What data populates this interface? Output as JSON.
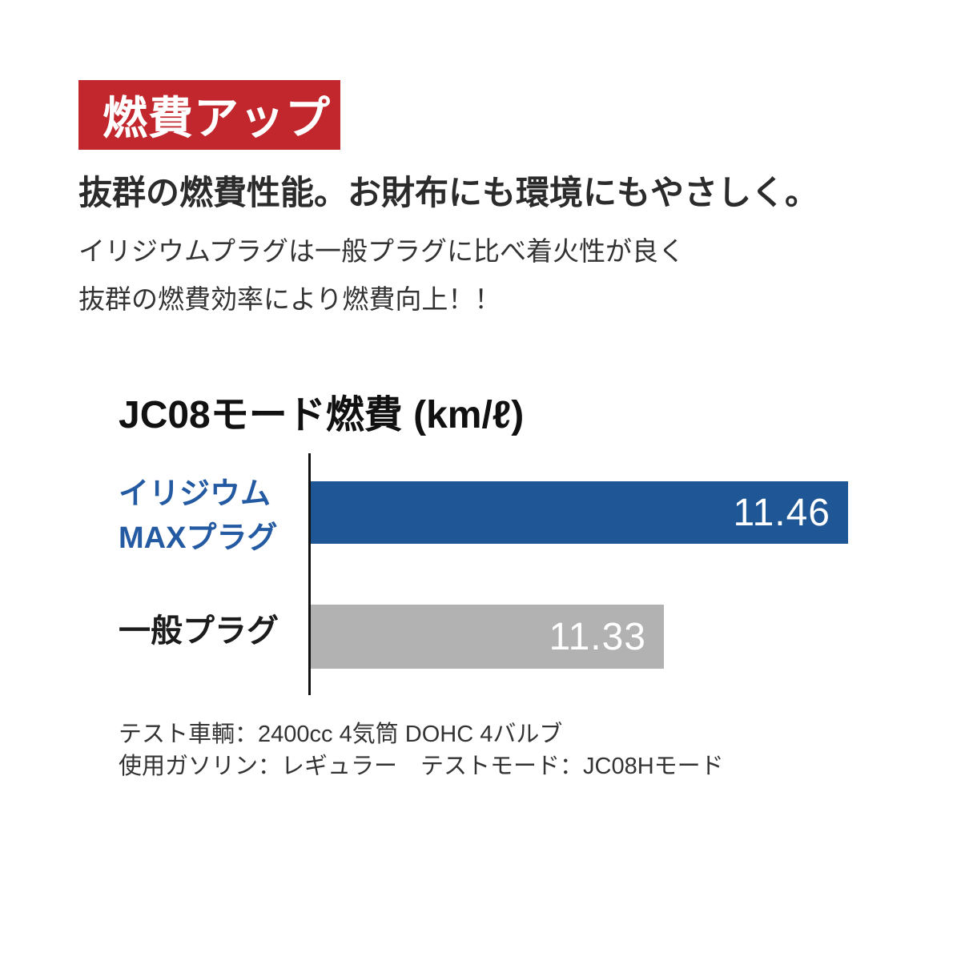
{
  "badge": {
    "label": "燃費アップ",
    "bg_color": "#c1272d",
    "text_color": "#ffffff"
  },
  "headline": "抜群の燃費性能。お財布にも環境にもやさしく。",
  "body_lines": [
    "イリジウムプラグは一般プラグに比べ着火性が良く",
    "抜群の燃費効率により燃費向上！！"
  ],
  "chart": {
    "title": "JC08モード燃費 (km/ℓ)",
    "rows": [
      {
        "label_lines": [
          "イリジウム",
          "MAXプラグ"
        ],
        "value_label": "11.46"
      },
      {
        "label_lines": [
          "一般プラグ"
        ],
        "value_label": "11.33"
      }
    ],
    "footnotes": [
      "テスト車輌：2400cc 4気筒 DOHC 4バルブ",
      "使用ガソリン：レギュラー　テストモード：JC08Hモード"
    ]
  },
  "chart_data": {
    "type": "bar",
    "orientation": "horizontal",
    "title": "JC08モード燃費 (km/ℓ)",
    "categories": [
      "イリジウムMAXプラグ",
      "一般プラグ"
    ],
    "values": [
      11.46,
      11.33
    ],
    "value_labels": [
      "11.46",
      "11.33"
    ],
    "xlabel": "km/ℓ",
    "ylabel": "",
    "xlim": [
      11.08,
      11.48
    ],
    "bar_colors": [
      "#1f5796",
      "#b2b2b2"
    ],
    "label_colors": [
      "#235aa2",
      "#1c1c1c"
    ],
    "value_label_color": "#ffffff",
    "grid": false,
    "legend": "none"
  }
}
